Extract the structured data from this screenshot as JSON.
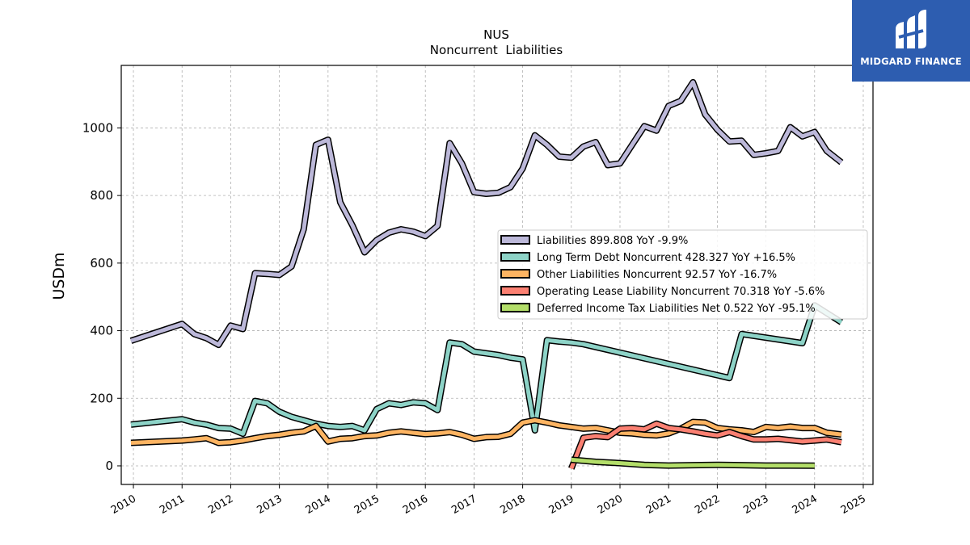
{
  "brand": {
    "name": "MIDGARD FINANCE",
    "color": "#2d5db0"
  },
  "chart_data": {
    "type": "line",
    "title": "NUS",
    "subtitle": "Noncurrent  Liabilities",
    "ylabel": "USDm",
    "xlabel": "",
    "xlim": [
      2009.75,
      2025.2
    ],
    "ylim": [
      -55,
      1185
    ],
    "x_ticks": [
      2010,
      2011,
      2012,
      2013,
      2014,
      2015,
      2016,
      2017,
      2018,
      2019,
      2020,
      2021,
      2022,
      2023,
      2024,
      2025
    ],
    "y_ticks": [
      0,
      200,
      400,
      600,
      800,
      1000
    ],
    "grid": true,
    "legend_position": "center-right",
    "series": [
      {
        "name": "Liabilities",
        "legend": "Liabilities  899.808 YoY -9.9%",
        "color": "#bcb8d9",
        "x": [
          2009.95,
          2011.0,
          2011.25,
          2011.5,
          2011.75,
          2012.0,
          2012.25,
          2012.5,
          2012.75,
          2013.0,
          2013.25,
          2013.5,
          2013.75,
          2014.0,
          2014.25,
          2014.5,
          2014.75,
          2015.0,
          2015.25,
          2015.5,
          2015.75,
          2016.0,
          2016.25,
          2016.5,
          2016.75,
          2017.0,
          2017.25,
          2017.5,
          2017.75,
          2018.0,
          2018.25,
          2018.5,
          2018.75,
          2019.0,
          2019.25,
          2019.5,
          2019.75,
          2020.0,
          2020.25,
          2020.5,
          2020.75,
          2021.0,
          2021.25,
          2021.5,
          2021.75,
          2022.0,
          2022.25,
          2022.5,
          2022.75,
          2023.0,
          2023.25,
          2023.5,
          2023.75,
          2024.0,
          2024.25,
          2024.55
        ],
        "values": [
          370,
          420,
          390,
          378,
          358,
          415,
          405,
          570,
          568,
          565,
          590,
          700,
          950,
          965,
          780,
          712,
          632,
          668,
          690,
          700,
          693,
          680,
          710,
          955,
          895,
          810,
          805,
          808,
          825,
          880,
          978,
          950,
          915,
          912,
          945,
          958,
          890,
          895,
          950,
          1005,
          992,
          1065,
          1080,
          1135,
          1040,
          995,
          960,
          962,
          920,
          925,
          932,
          1002,
          975,
          988,
          932,
          898
        ]
      },
      {
        "name": "Long Term Debt Noncurrent",
        "legend": "Long Term Debt Noncurrent  428.327 YoY +16.5%",
        "color": "#8dd3c7",
        "x": [
          2009.95,
          2011.0,
          2011.25,
          2011.5,
          2011.75,
          2012.0,
          2012.25,
          2012.5,
          2012.75,
          2013.0,
          2013.25,
          2013.5,
          2013.75,
          2014.0,
          2014.25,
          2014.5,
          2014.75,
          2015.0,
          2015.25,
          2015.5,
          2015.75,
          2016.0,
          2016.25,
          2016.5,
          2016.75,
          2017.0,
          2017.25,
          2017.5,
          2017.75,
          2018.0,
          2018.25,
          2018.5,
          2018.75,
          2019.0,
          2019.25,
          2022.25,
          2022.5,
          2023.75,
          2024.0,
          2024.55
        ],
        "values": [
          122,
          138,
          128,
          122,
          112,
          110,
          95,
          192,
          185,
          160,
          145,
          135,
          125,
          118,
          115,
          118,
          105,
          168,
          185,
          180,
          188,
          185,
          165,
          365,
          360,
          338,
          333,
          328,
          320,
          315,
          105,
          372,
          368,
          365,
          360,
          260,
          390,
          363,
          475,
          425
        ]
      },
      {
        "name": "Other Liabilities Noncurrent",
        "legend": "Other Liabilities Noncurrent  92.57 YoY -16.7%",
        "color": "#fdb462",
        "x": [
          2009.95,
          2011.0,
          2011.25,
          2011.5,
          2011.75,
          2012.0,
          2012.25,
          2012.5,
          2012.75,
          2013.0,
          2013.25,
          2013.5,
          2013.75,
          2014.0,
          2014.25,
          2014.5,
          2014.75,
          2015.0,
          2015.25,
          2015.5,
          2015.75,
          2016.0,
          2016.25,
          2016.5,
          2016.75,
          2017.0,
          2017.25,
          2017.5,
          2017.75,
          2018.0,
          2018.25,
          2018.5,
          2018.75,
          2019.0,
          2019.25,
          2019.5,
          2019.75,
          2020.0,
          2020.25,
          2020.5,
          2020.75,
          2021.0,
          2021.25,
          2021.5,
          2021.75,
          2022.0,
          2022.25,
          2022.5,
          2022.75,
          2023.0,
          2023.25,
          2023.5,
          2023.75,
          2024.0,
          2024.25,
          2024.55
        ],
        "values": [
          68,
          75,
          78,
          82,
          68,
          70,
          75,
          82,
          88,
          92,
          98,
          102,
          118,
          72,
          80,
          82,
          88,
          90,
          98,
          102,
          98,
          94,
          96,
          100,
          92,
          80,
          85,
          86,
          95,
          128,
          135,
          128,
          120,
          115,
          110,
          112,
          105,
          98,
          96,
          92,
          90,
          96,
          110,
          130,
          128,
          112,
          108,
          105,
          100,
          115,
          112,
          116,
          112,
          112,
          98,
          93
        ]
      },
      {
        "name": "Operating Lease Liability Noncurrent",
        "legend": "Operating Lease Liability Noncurrent  70.318 YoY -5.6%",
        "color": "#fb8072",
        "x": [
          2019.0,
          2019.25,
          2019.5,
          2019.75,
          2020.0,
          2020.25,
          2020.5,
          2020.75,
          2021.0,
          2021.25,
          2021.5,
          2021.75,
          2022.0,
          2022.25,
          2022.5,
          2022.75,
          2023.0,
          2023.25,
          2023.5,
          2023.75,
          2024.0,
          2024.25,
          2024.55
        ],
        "values": [
          -8,
          83,
          88,
          85,
          110,
          112,
          108,
          125,
          112,
          108,
          102,
          95,
          90,
          100,
          88,
          78,
          78,
          80,
          76,
          72,
          75,
          78,
          70
        ]
      },
      {
        "name": "Deferred Income Tax Liabilities Net",
        "legend": "Deferred Income Tax Liabilities Net  0.522 YoY -95.1%",
        "color": "#b3de69",
        "x": [
          2019.0,
          2019.5,
          2020.0,
          2020.5,
          2021.0,
          2021.5,
          2022.0,
          2022.5,
          2023.0,
          2023.5,
          2024.0
        ],
        "values": [
          18,
          12,
          8,
          3,
          1,
          2,
          3,
          2,
          1,
          1,
          0.5
        ]
      }
    ]
  }
}
